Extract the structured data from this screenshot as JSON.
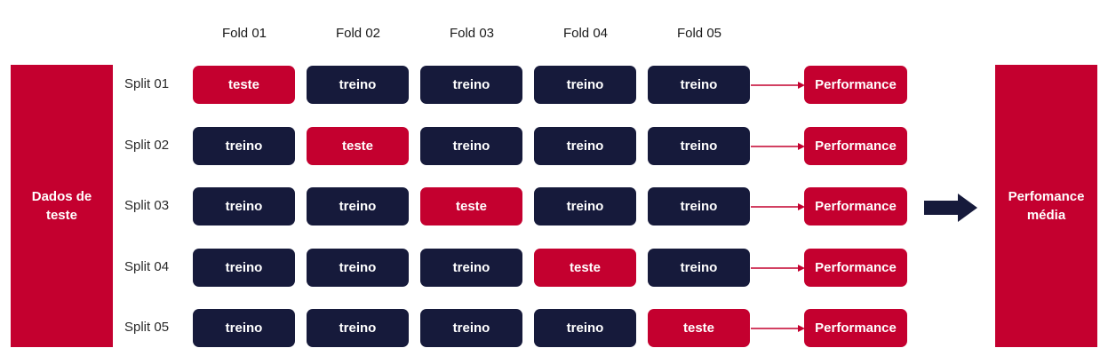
{
  "left_label": "Dados de\nteste",
  "right_label": "Perfomance\nmédia",
  "folds": [
    "Fold 01",
    "Fold 02",
    "Fold 03",
    "Fold 04",
    "Fold 05"
  ],
  "rows": [
    {
      "split": "Split 01",
      "cells": [
        "teste",
        "treino",
        "treino",
        "treino",
        "treino"
      ],
      "result": "Performance"
    },
    {
      "split": "Split 02",
      "cells": [
        "treino",
        "teste",
        "treino",
        "treino",
        "treino"
      ],
      "result": "Performance"
    },
    {
      "split": "Split 03",
      "cells": [
        "treino",
        "treino",
        "teste",
        "treino",
        "treino"
      ],
      "result": "Performance"
    },
    {
      "split": "Split 04",
      "cells": [
        "treino",
        "treino",
        "treino",
        "teste",
        "treino"
      ],
      "result": "Performance"
    },
    {
      "split": "Split 05",
      "cells": [
        "treino",
        "treino",
        "treino",
        "treino",
        "teste"
      ],
      "result": "Performance"
    }
  ],
  "colors": {
    "teste": "#c4002f",
    "treino": "#161a3b",
    "accent": "#c4002f",
    "arrow": "#161a3b"
  }
}
